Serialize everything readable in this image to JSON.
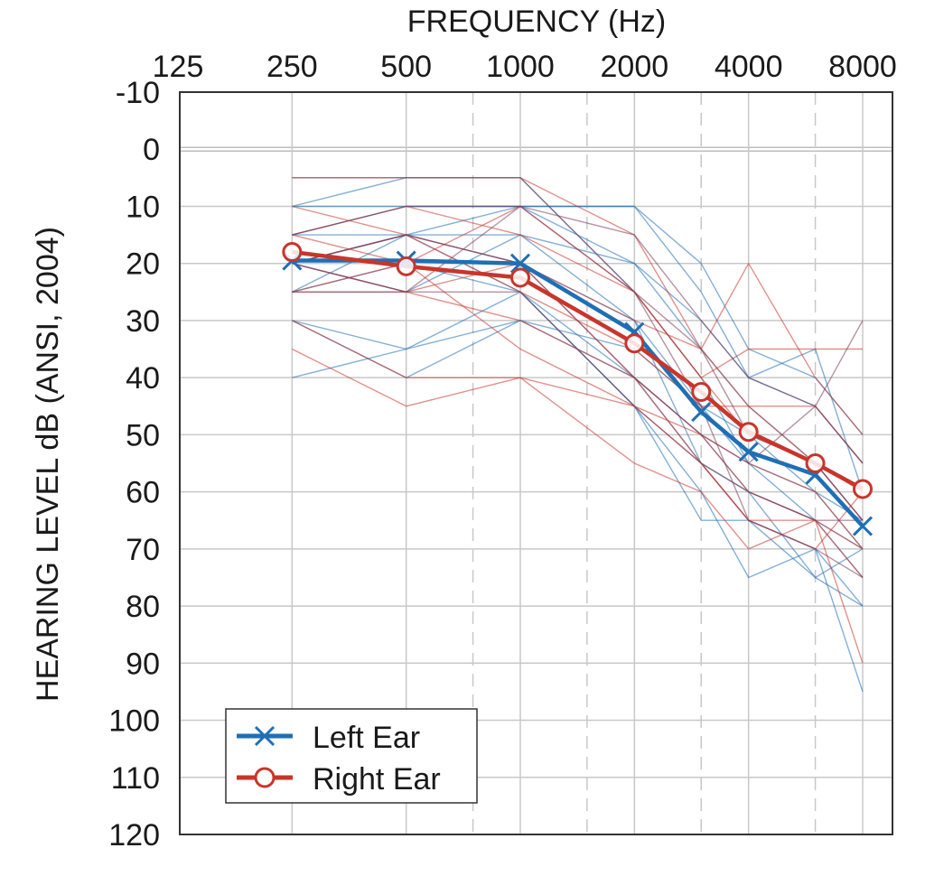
{
  "chart_data": {
    "type": "line",
    "title": "",
    "xlabel": "FREQUENCY (Hz)",
    "ylabel": "HEARING LEVEL dB (ANSI, 2004)",
    "x_scale": "log2",
    "x_ticks": [
      125,
      250,
      500,
      1000,
      2000,
      4000,
      8000
    ],
    "x_tick_labels": [
      "125",
      "250",
      "500",
      "1000",
      "2000",
      "4000",
      "8000"
    ],
    "x_minor_dashed": [
      750,
      1500,
      3000,
      6000
    ],
    "xlim": [
      125,
      8000
    ],
    "ylim": [
      -10,
      120
    ],
    "y_inverted": true,
    "y_ticks": [
      -10,
      0,
      10,
      20,
      30,
      40,
      50,
      60,
      70,
      80,
      90,
      100,
      110,
      120
    ],
    "y_tick_labels": [
      "-10",
      "0",
      "10",
      "20",
      "30",
      "40",
      "50",
      "60",
      "70",
      "80",
      "90",
      "100",
      "110",
      "120"
    ],
    "grid": true,
    "legend_position": "bottom-left",
    "colors": {
      "left": "#1f6fb4",
      "right": "#c8352b"
    },
    "x": [
      250,
      500,
      1000,
      2000,
      3000,
      4000,
      6000,
      8000
    ],
    "series": [
      {
        "name": "Left Ear",
        "marker": "x",
        "color": "#1f6fb4",
        "values": [
          19.5,
          19.5,
          20,
          32,
          46,
          53,
          57,
          66
        ]
      },
      {
        "name": "Right Ear",
        "marker": "o",
        "color": "#c8352b",
        "values": [
          18,
          20.5,
          22.5,
          34,
          42.5,
          49.5,
          55,
          59.5
        ]
      }
    ],
    "individual_series": [
      {
        "color": "#1f6fb4",
        "values": [
          10,
          5,
          5,
          25,
          40,
          55,
          60,
          70
        ]
      },
      {
        "color": "#1f6fb4",
        "values": [
          15,
          15,
          10,
          20,
          35,
          45,
          55,
          65
        ]
      },
      {
        "color": "#1f6fb4",
        "values": [
          20,
          15,
          20,
          30,
          45,
          55,
          65,
          75
        ]
      },
      {
        "color": "#1f6fb4",
        "values": [
          25,
          20,
          25,
          40,
          55,
          65,
          70,
          80
        ]
      },
      {
        "color": "#1f6fb4",
        "values": [
          30,
          35,
          25,
          45,
          60,
          75,
          70,
          95
        ]
      },
      {
        "color": "#1f6fb4",
        "values": [
          40,
          35,
          30,
          40,
          50,
          60,
          75,
          80
        ]
      },
      {
        "color": "#1f6fb4",
        "values": [
          15,
          10,
          10,
          10,
          25,
          40,
          35,
          60
        ]
      },
      {
        "color": "#1f6fb4",
        "values": [
          30,
          40,
          30,
          35,
          45,
          50,
          60,
          65
        ]
      },
      {
        "color": "#1f6fb4",
        "values": [
          20,
          25,
          15,
          30,
          55,
          60,
          65,
          70
        ]
      },
      {
        "color": "#1f6fb4",
        "values": [
          25,
          15,
          15,
          20,
          30,
          40,
          45,
          55
        ]
      },
      {
        "color": "#1f6fb4",
        "values": [
          10,
          10,
          10,
          10,
          20,
          35,
          40,
          50
        ]
      },
      {
        "color": "#1f6fb4",
        "values": [
          20,
          15,
          25,
          45,
          65,
          65,
          75,
          70
        ]
      },
      {
        "color": "#c8352b",
        "values": [
          5,
          5,
          5,
          15,
          35,
          45,
          55,
          60
        ]
      },
      {
        "color": "#c8352b",
        "values": [
          15,
          20,
          10,
          25,
          40,
          50,
          55,
          65
        ]
      },
      {
        "color": "#c8352b",
        "values": [
          35,
          45,
          40,
          55,
          60,
          70,
          65,
          90
        ]
      },
      {
        "color": "#c8352b",
        "values": [
          10,
          15,
          20,
          30,
          35,
          20,
          40,
          50
        ]
      },
      {
        "color": "#c8352b",
        "values": [
          20,
          25,
          30,
          40,
          50,
          60,
          65,
          75
        ]
      },
      {
        "color": "#c8352b",
        "values": [
          25,
          20,
          35,
          45,
          55,
          65,
          70,
          60
        ]
      },
      {
        "color": "#c8352b",
        "values": [
          15,
          10,
          15,
          25,
          40,
          35,
          35,
          35
        ]
      },
      {
        "color": "#c8352b",
        "values": [
          30,
          40,
          40,
          45,
          50,
          55,
          60,
          70
        ]
      },
      {
        "color": "#c8352b",
        "values": [
          20,
          15,
          25,
          35,
          45,
          45,
          45,
          55
        ]
      },
      {
        "color": "#c8352b",
        "values": [
          25,
          25,
          20,
          40,
          55,
          65,
          65,
          70
        ]
      },
      {
        "color": "#7a3a5a",
        "values": [
          5,
          5,
          5,
          25,
          35,
          50,
          55,
          65
        ]
      },
      {
        "color": "#7a3a5a",
        "values": [
          15,
          10,
          10,
          15,
          30,
          40,
          45,
          55
        ]
      },
      {
        "color": "#7a3a5a",
        "values": [
          20,
          25,
          10,
          25,
          45,
          65,
          70,
          75
        ]
      },
      {
        "color": "#7a3a5a",
        "values": [
          20,
          15,
          20,
          40,
          50,
          55,
          45,
          30
        ]
      },
      {
        "color": "#7a3a5a",
        "values": [
          25,
          25,
          25,
          45,
          55,
          60,
          65,
          65
        ]
      }
    ]
  }
}
